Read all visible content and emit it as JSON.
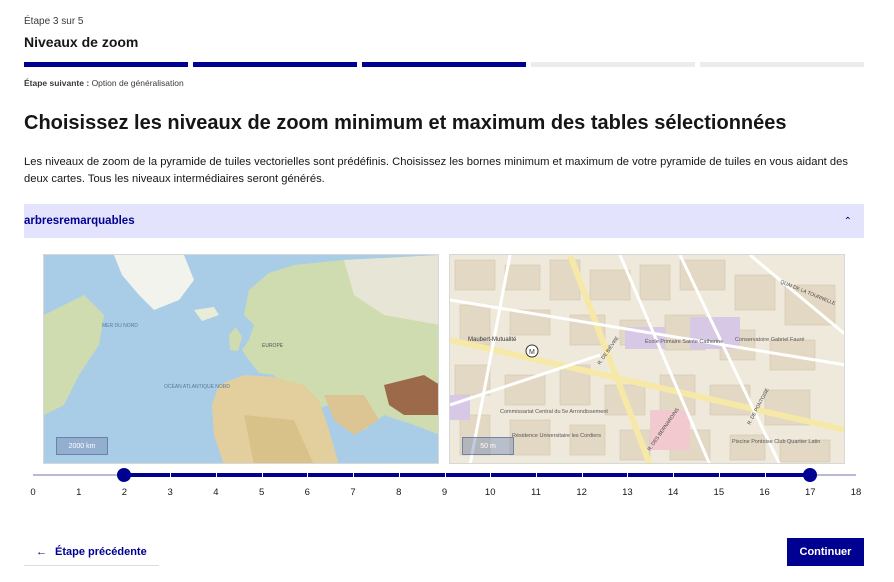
{
  "header": {
    "step_label": "Étape 3 sur 5",
    "step_title": "Niveaux de zoom",
    "steps_total": 5,
    "steps_done": 3,
    "next_step_label": "Étape suivante :",
    "next_step_value": "Option de généralisation",
    "accent_color": "#000091"
  },
  "main": {
    "title": "Choisissez les niveaux de zoom minimum et maximum des tables sélectionnées",
    "intro": "Les niveaux de zoom de la pyramide de tuiles vectorielles sont prédéfinis. Choisissez les bornes minimum et maximum de votre pyramide de tuiles en vous aidant des deux cartes. Tous les niveaux intermédiaires seront générés."
  },
  "accordion": {
    "title": "arbresremarquables",
    "icon": "chevron-up-icon",
    "expanded": true
  },
  "maps": {
    "left": {
      "scale": "2000 km",
      "labels": [
        "EUROPE",
        "OCÉAN ATLANTIQUE NORD",
        "MER DU NORD"
      ]
    },
    "right": {
      "scale": "50 m",
      "labels": [
        "Maubert-Mutualité",
        "École Primaire Sainte Catherine",
        "Conservatoire Gabriel Fauré",
        "Commissariat Central du 5e Arrondissement",
        "Résidence Universitaire les Cordiers",
        "Piscine Pontoise Club Quartier Latin",
        "R. DE BIÈVRE",
        "QUAI DE LA TOURNELLE",
        "R. DE PONTOISE",
        "R. DES BERNARDINS"
      ]
    }
  },
  "slider": {
    "min": 0,
    "max": 18,
    "value_min": 2,
    "value_max": 17,
    "tick_labels": [
      "0",
      "1",
      "2",
      "3",
      "4",
      "5",
      "6",
      "7",
      "8",
      "9",
      "10",
      "11",
      "12",
      "13",
      "14",
      "15",
      "16",
      "17",
      "18"
    ]
  },
  "footer": {
    "back_label": "Étape précédente",
    "back_icon": "arrow-left-icon",
    "continue_label": "Continuer"
  }
}
